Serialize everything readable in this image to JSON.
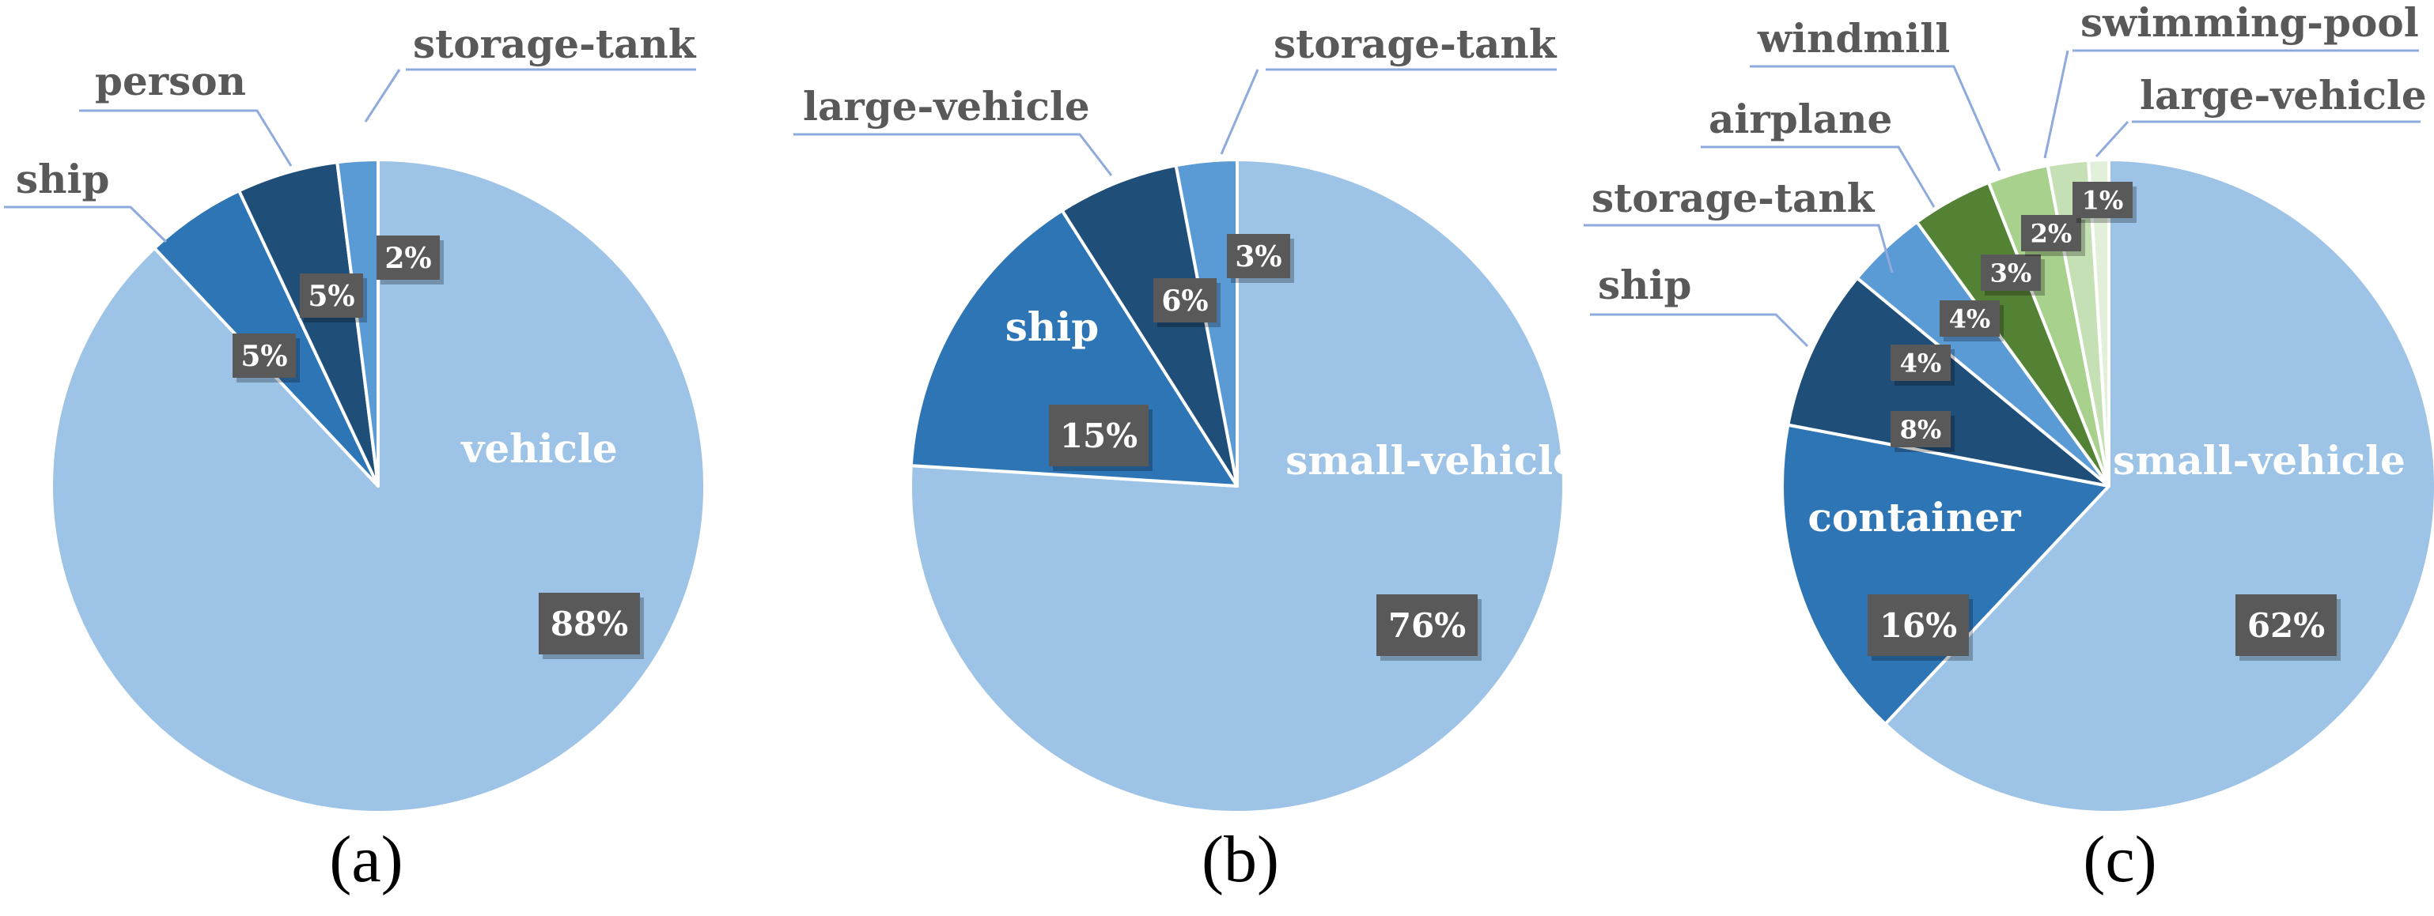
{
  "chart_data": [
    {
      "type": "pie",
      "caption": "(a)",
      "slices": [
        {
          "label": "vehicle",
          "pct_label": "88%",
          "value": 88,
          "color": "#9DC3E6"
        },
        {
          "label": "ship",
          "pct_label": "5%",
          "value": 5,
          "color": "#2E75B6"
        },
        {
          "label": "person",
          "pct_label": "5%",
          "value": 5,
          "color": "#1F4E79"
        },
        {
          "label": "storage-tank",
          "pct_label": "2%",
          "value": 2,
          "color": "#5B9BD5"
        }
      ]
    },
    {
      "type": "pie",
      "caption": "(b)",
      "slices": [
        {
          "label": "small-vehicle",
          "pct_label": "76%",
          "value": 76,
          "color": "#9DC3E6"
        },
        {
          "label": "ship",
          "pct_label": "15%",
          "value": 15,
          "color": "#2E75B6"
        },
        {
          "label": "large-vehicle",
          "pct_label": "6%",
          "value": 6,
          "color": "#1F4E79"
        },
        {
          "label": "storage-tank",
          "pct_label": "3%",
          "value": 3,
          "color": "#5B9BD5"
        }
      ]
    },
    {
      "type": "pie",
      "caption": "(c)",
      "slices": [
        {
          "label": "small-vehicle",
          "pct_label": "62%",
          "value": 62,
          "color": "#9DC3E6"
        },
        {
          "label": "container",
          "pct_label": "16%",
          "value": 16,
          "color": "#2E75B6"
        },
        {
          "label": "ship",
          "pct_label": "8%",
          "value": 8,
          "color": "#1F4E79"
        },
        {
          "label": "storage-tank",
          "pct_label": "4%",
          "value": 4,
          "color": "#5B9BD5"
        },
        {
          "label": "airplane",
          "pct_label": "4%",
          "value": 4,
          "color": "#548235"
        },
        {
          "label": "windmill",
          "pct_label": "3%",
          "value": 3,
          "color": "#A9D18E"
        },
        {
          "label": "swimming-pool",
          "pct_label": "2%",
          "value": 2,
          "color": "#C5E0B4"
        },
        {
          "label": "large-vehicle",
          "pct_label": "1%",
          "value": 1,
          "color": "#E2F0D9"
        }
      ]
    }
  ],
  "colors": {
    "pct_box": "#595959",
    "leader_line": "#8FAADC",
    "outer_label": "#595959"
  }
}
